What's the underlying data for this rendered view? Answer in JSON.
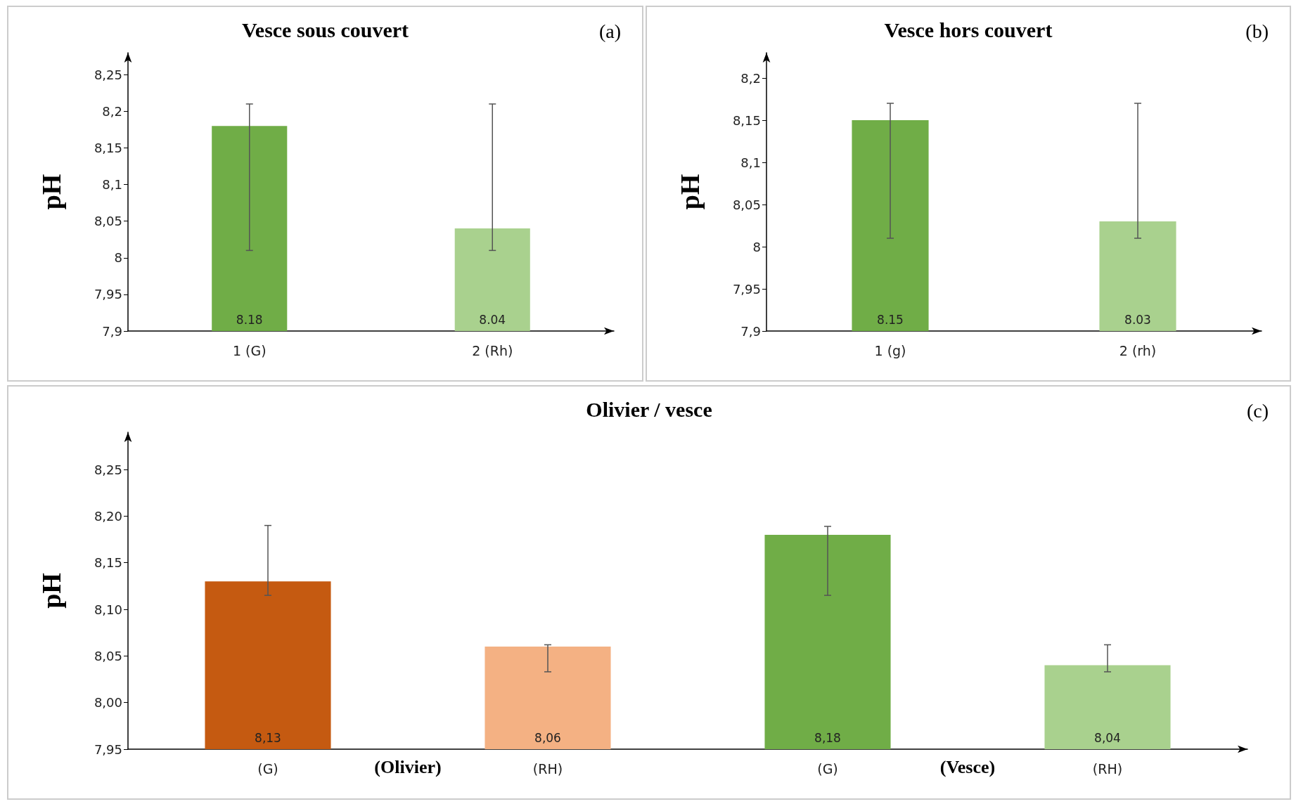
{
  "chart_data": [
    {
      "type": "bar",
      "title": "Vesce sous couvert",
      "ylabel": "pH",
      "annotations": [
        "(a)"
      ],
      "categories": [
        "1 (G)",
        "2 (Rh)"
      ],
      "values": [
        8.18,
        8.04
      ],
      "colors": [
        "#70ad47",
        "#a9d18e"
      ],
      "errors": [
        [
          8.01,
          8.21
        ],
        [
          8.01,
          8.21
        ]
      ],
      "value_labels": [
        "8.18",
        "8.04"
      ],
      "ylim": [
        7.9,
        8.28
      ],
      "yticks": [
        {
          "value": 7.9,
          "label": "7,9"
        },
        {
          "value": 7.95,
          "label": "7,95"
        },
        {
          "value": 8,
          "label": "8"
        },
        {
          "value": 8.05,
          "label": "8,05"
        },
        {
          "value": 8.1,
          "label": "8,1"
        },
        {
          "value": 8.15,
          "label": "8,15"
        },
        {
          "value": 8.2,
          "label": "8,2"
        },
        {
          "value": 8.25,
          "label": "8,25"
        }
      ]
    },
    {
      "type": "bar",
      "title": "Vesce hors couvert",
      "ylabel": "pH",
      "annotations": [
        "(b)"
      ],
      "categories": [
        "1 (g)",
        "2 (rh)"
      ],
      "values": [
        8.15,
        8.03
      ],
      "colors": [
        "#70ad47",
        "#a9d18e"
      ],
      "errors": [
        [
          8.01,
          8.17
        ],
        [
          8.01,
          8.17
        ]
      ],
      "value_labels": [
        "8.15",
        "8.03"
      ],
      "ylim": [
        7.9,
        8.23
      ],
      "yticks": [
        {
          "value": 7.9,
          "label": "7,9"
        },
        {
          "value": 7.95,
          "label": "7,95"
        },
        {
          "value": 8,
          "label": "8"
        },
        {
          "value": 8.05,
          "label": "8,05"
        },
        {
          "value": 8.1,
          "label": "8,1"
        },
        {
          "value": 8.15,
          "label": "8,15"
        },
        {
          "value": 8.2,
          "label": "8,2"
        }
      ]
    },
    {
      "type": "bar",
      "title": "Olivier / vesce",
      "ylabel": "pH",
      "annotations": [
        "(c)",
        "(Olivier)",
        "(Vesce)"
      ],
      "categories": [
        "(G)",
        "(RH)",
        "(G)",
        "(RH)"
      ],
      "values": [
        8.13,
        8.06,
        8.18,
        8.04
      ],
      "colors": [
        "#c55a11",
        "#f4b183",
        "#70ad47",
        "#a9d18e"
      ],
      "errors": [
        [
          8.115,
          8.19
        ],
        [
          8.033,
          8.062
        ],
        [
          8.115,
          8.189
        ],
        [
          8.033,
          8.062
        ]
      ],
      "value_labels": [
        "8,13",
        "8,06",
        "8,18",
        "8,04"
      ],
      "ylim": [
        7.95,
        8.29
      ],
      "yticks": [
        {
          "value": 7.95,
          "label": "7,95"
        },
        {
          "value": 8,
          "label": "8,00"
        },
        {
          "value": 8.05,
          "label": "8,05"
        },
        {
          "value": 8.1,
          "label": "8,10"
        },
        {
          "value": 8.15,
          "label": "8,15"
        },
        {
          "value": 8.2,
          "label": "8,20"
        },
        {
          "value": 8.25,
          "label": "8,25"
        }
      ]
    }
  ]
}
